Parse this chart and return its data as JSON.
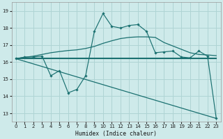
{
  "xlabel": "Humidex (Indice chaleur)",
  "bg_color": "#ceeaea",
  "grid_color": "#afd4d4",
  "line_color": "#1a7070",
  "xlim": [
    -0.5,
    23.5
  ],
  "ylim": [
    12.5,
    19.5
  ],
  "xticks": [
    0,
    1,
    2,
    3,
    4,
    5,
    6,
    7,
    8,
    9,
    10,
    11,
    12,
    13,
    14,
    15,
    16,
    17,
    18,
    19,
    20,
    21,
    22,
    23
  ],
  "yticks": [
    13,
    14,
    15,
    16,
    17,
    18,
    19
  ],
  "line1_x": [
    0,
    1,
    2,
    3,
    4,
    5,
    6,
    7,
    8,
    9,
    10,
    11,
    12,
    13,
    14,
    15,
    16,
    17,
    18,
    19,
    20,
    21,
    22,
    23
  ],
  "line1_y": [
    16.2,
    16.3,
    16.3,
    16.35,
    15.2,
    15.5,
    14.2,
    14.4,
    15.2,
    17.8,
    18.85,
    18.1,
    18.0,
    18.15,
    18.2,
    17.8,
    16.55,
    16.6,
    16.65,
    16.3,
    16.25,
    16.65,
    16.35,
    12.7
  ],
  "line2_x": [
    0,
    1,
    2,
    3,
    4,
    5,
    6,
    7,
    8,
    9,
    10,
    11,
    12,
    13,
    14,
    15,
    16,
    17,
    18,
    19,
    20,
    21,
    22,
    23
  ],
  "line2_y": [
    16.2,
    16.28,
    16.35,
    16.45,
    16.55,
    16.62,
    16.68,
    16.72,
    16.8,
    16.92,
    17.1,
    17.25,
    17.38,
    17.45,
    17.48,
    17.48,
    17.45,
    17.15,
    16.95,
    16.75,
    16.55,
    16.45,
    16.42,
    16.38
  ],
  "line3_x": [
    0,
    22,
    23
  ],
  "line3_y": [
    16.2,
    16.2,
    16.2
  ],
  "line4_x": [
    0,
    23
  ],
  "line4_y": [
    16.2,
    12.7
  ]
}
